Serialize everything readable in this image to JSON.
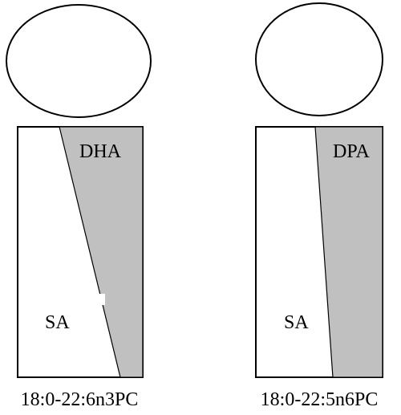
{
  "molecules": [
    {
      "id": "left",
      "shaded_label": "DHA",
      "unshaded_label": "SA",
      "caption": "18:0-22:6n3PC"
    },
    {
      "id": "right",
      "shaded_label": "DPA",
      "unshaded_label": "SA",
      "caption": "18:0-22:5n6PC"
    }
  ],
  "colors": {
    "outline": "#000000",
    "shaded_chain": "#c0c0c0",
    "headgroup_fill": "#ffffff",
    "background": "#ffffff"
  }
}
